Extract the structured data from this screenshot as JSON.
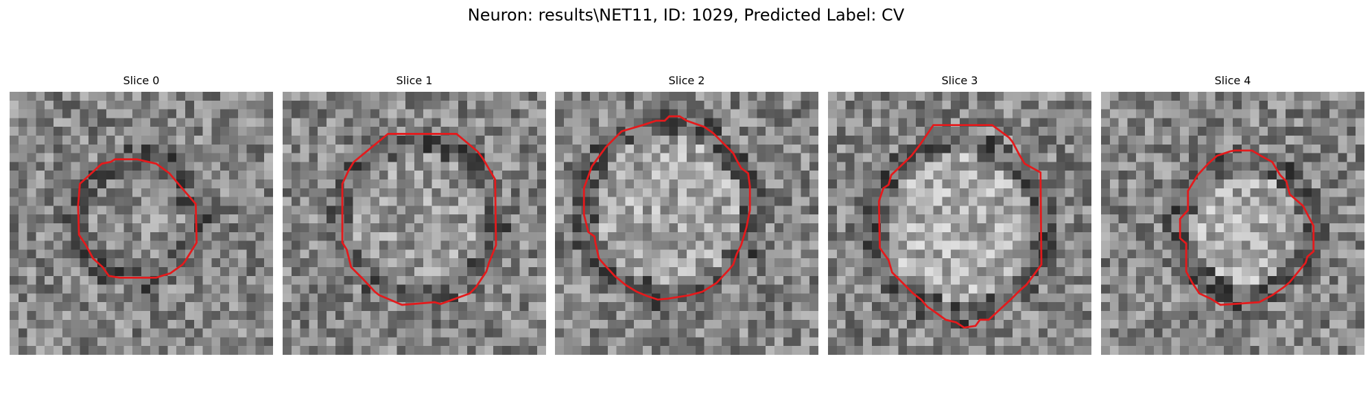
{
  "figure": {
    "title": "Neuron: results\\NET11, ID: 1029, Predicted Label: CV"
  },
  "colors": {
    "contour": "#e41a1c",
    "background": "#ffffff"
  },
  "slices": [
    {
      "title": "Slice 0"
    },
    {
      "title": "Slice 1"
    },
    {
      "title": "Slice 2"
    },
    {
      "title": "Slice 3"
    },
    {
      "title": "Slice 4"
    }
  ]
}
